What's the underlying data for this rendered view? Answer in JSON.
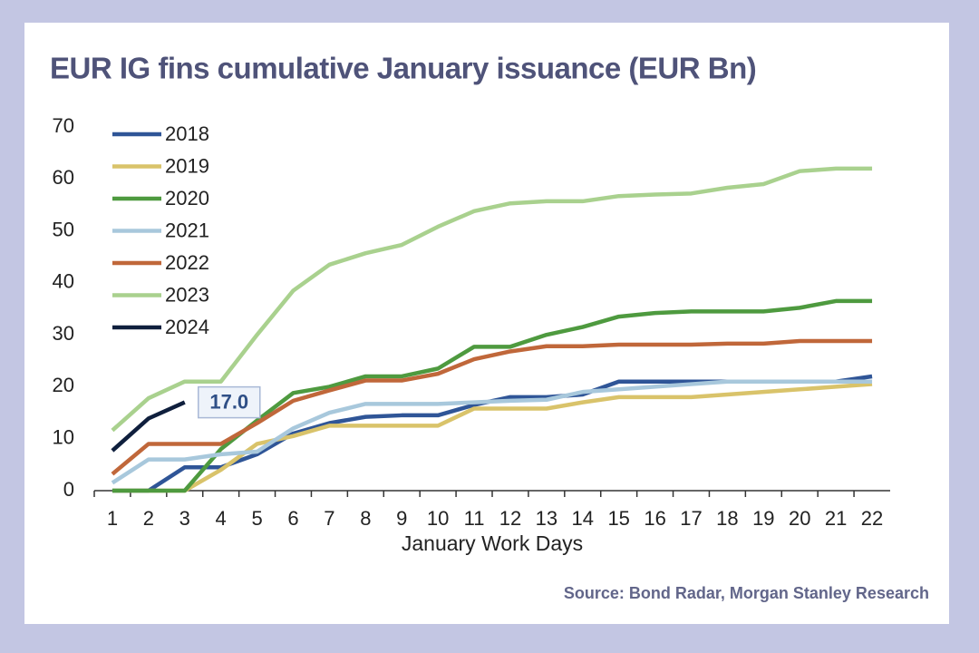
{
  "chart_data": {
    "type": "line",
    "title": "EUR IG fins cumulative January issuance (EUR Bn)",
    "x_label": "January Work Days",
    "source": "Source: Bond Radar, Morgan Stanley Research",
    "x": [
      1,
      2,
      3,
      4,
      5,
      6,
      7,
      8,
      9,
      10,
      11,
      12,
      13,
      14,
      15,
      16,
      17,
      18,
      19,
      20,
      21,
      22
    ],
    "xlim": [
      0.5,
      22.5
    ],
    "xticks": [
      1,
      2,
      3,
      4,
      5,
      6,
      7,
      8,
      9,
      10,
      11,
      12,
      13,
      14,
      15,
      16,
      17,
      18,
      19,
      20,
      21,
      22
    ],
    "ylim": [
      0,
      70
    ],
    "yticks": [
      0,
      10,
      20,
      30,
      40,
      50,
      60,
      70
    ],
    "grid": false,
    "legend": "upper left",
    "series": [
      {
        "name": "2018",
        "color": "#2f5597",
        "values": [
          0,
          0,
          4.5,
          4.5,
          7,
          11,
          13,
          14.2,
          14.5,
          14.5,
          16.5,
          18,
          18,
          18.5,
          21,
          21,
          21,
          21,
          21,
          21,
          21,
          22
        ]
      },
      {
        "name": "2019",
        "color": "#d9c36a",
        "values": [
          0,
          0,
          0,
          4,
          9,
          10.5,
          12.5,
          12.5,
          12.5,
          12.5,
          15.8,
          15.8,
          15.8,
          17,
          18,
          18,
          18,
          18.5,
          19,
          19.5,
          20,
          20.5
        ]
      },
      {
        "name": "2020",
        "color": "#4e9a3f",
        "values": [
          0,
          0,
          0,
          8,
          13.5,
          18.8,
          20,
          22,
          22,
          23.5,
          27.7,
          27.7,
          30,
          31.5,
          33.5,
          34.2,
          34.5,
          34.5,
          34.5,
          35.2,
          36.5,
          36.5
        ]
      },
      {
        "name": "2021",
        "color": "#a8c8dc",
        "values": [
          1.5,
          6,
          6,
          7,
          7.5,
          12,
          15,
          16.7,
          16.7,
          16.7,
          17,
          17.3,
          17.5,
          19,
          19.5,
          20,
          20.5,
          21,
          21,
          21,
          21,
          21
        ]
      },
      {
        "name": "2022",
        "color": "#c0673a",
        "values": [
          3.2,
          9,
          9,
          9,
          13,
          17.3,
          19.3,
          21.2,
          21.2,
          22.5,
          25.3,
          26.8,
          27.8,
          27.8,
          28.1,
          28.1,
          28.1,
          28.3,
          28.3,
          28.8,
          28.8,
          28.8
        ]
      },
      {
        "name": "2023",
        "color": "#a9d18e",
        "values": [
          11.6,
          17.8,
          21,
          21,
          30,
          38.5,
          43.5,
          45.7,
          47.3,
          50.8,
          53.8,
          55.3,
          55.7,
          55.7,
          56.7,
          57,
          57.2,
          58.3,
          59,
          61.5,
          62,
          62
        ]
      },
      {
        "name": "2024",
        "color": "#0f1f3d",
        "values": [
          7.7,
          13.9,
          17.0,
          null,
          null,
          null,
          null,
          null,
          null,
          null,
          null,
          null,
          null,
          null,
          null,
          null,
          null,
          null,
          null,
          null,
          null,
          null
        ],
        "value_labels": [
          null,
          null,
          "17.0",
          null,
          null,
          null,
          null,
          null,
          null,
          null,
          null,
          null,
          null,
          null,
          null,
          null,
          null,
          null,
          null,
          null,
          null,
          null
        ]
      }
    ]
  }
}
